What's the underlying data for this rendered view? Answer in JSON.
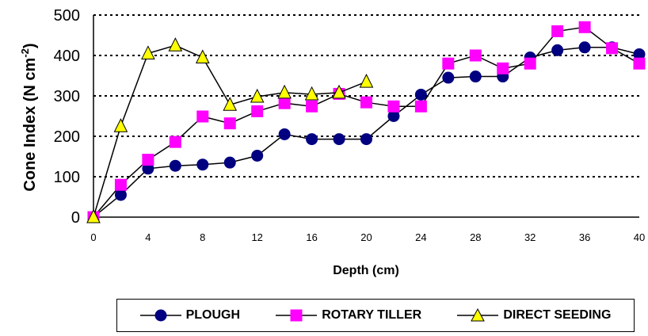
{
  "chart_data": {
    "type": "line",
    "xlabel": "Depth (cm)",
    "ylabel_main": "Cone Index (N cm",
    "ylabel_sup": "-2",
    "ylabel_end": ")",
    "xlim": [
      0,
      40
    ],
    "ylim": [
      0,
      500
    ],
    "x_ticks": [
      "0",
      "4",
      "8",
      "12",
      "16",
      "20",
      "24",
      "28",
      "32",
      "36",
      "40"
    ],
    "y_ticks": [
      "0",
      "100",
      "200",
      "300",
      "400",
      "500"
    ],
    "grid": "horizontal dotted",
    "legend_position": "bottom",
    "series": [
      {
        "name": "PLOUGH",
        "marker": "circle",
        "color": "#000080",
        "x": [
          0,
          2,
          4,
          6,
          8,
          10,
          12,
          14,
          16,
          18,
          20,
          22,
          24,
          26,
          28,
          30,
          32,
          34,
          36,
          38,
          40
        ],
        "y": [
          0,
          55,
          120,
          127,
          130,
          135,
          152,
          205,
          193,
          193,
          193,
          250,
          303,
          345,
          348,
          348,
          395,
          413,
          420,
          420,
          403
        ]
      },
      {
        "name": "ROTARY TILLER",
        "marker": "square",
        "color": "#ff00ff",
        "x": [
          0,
          2,
          4,
          6,
          8,
          10,
          12,
          14,
          16,
          18,
          20,
          22,
          24,
          26,
          28,
          30,
          32,
          34,
          36,
          38,
          40
        ],
        "y": [
          0,
          80,
          142,
          186,
          249,
          232,
          262,
          282,
          274,
          305,
          284,
          274,
          274,
          380,
          400,
          368,
          380,
          460,
          470,
          418,
          380
        ]
      },
      {
        "name": "DIRECT SEEDING",
        "marker": "triangle",
        "color": "#ffff00",
        "x": [
          0,
          2,
          4,
          6,
          8,
          10,
          12,
          14,
          16,
          18,
          20
        ],
        "y": [
          0,
          225,
          405,
          425,
          395,
          278,
          298,
          308,
          304,
          308,
          335
        ]
      }
    ]
  }
}
